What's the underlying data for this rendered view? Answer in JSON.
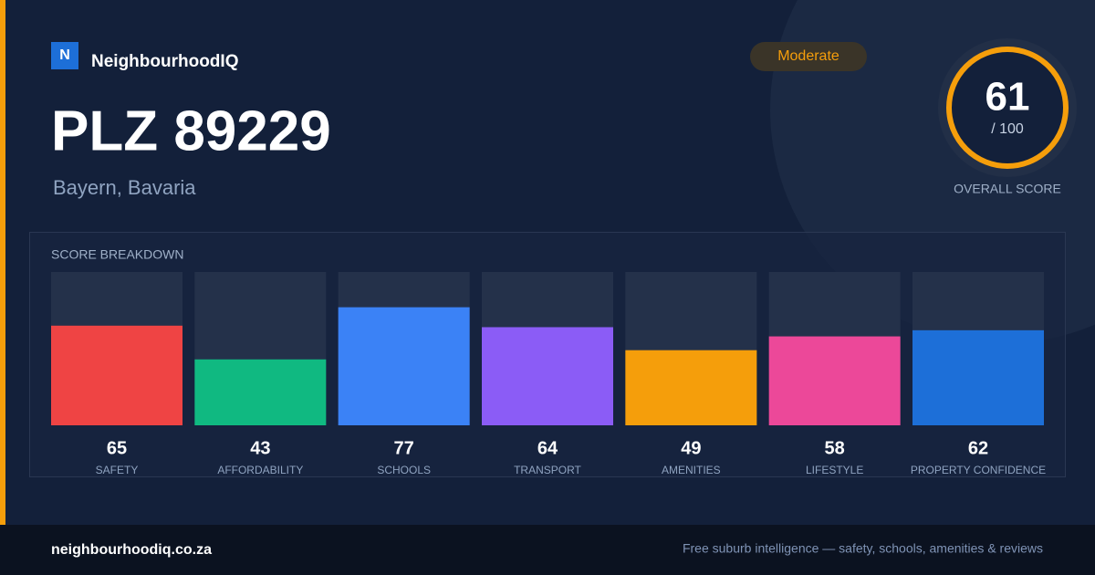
{
  "brand": {
    "logo_letter": "N",
    "name": "NeighbourhoodIQ"
  },
  "header": {
    "title": "PLZ 89229",
    "subtitle": "Bayern, Bavaria",
    "badge": "Moderate"
  },
  "score": {
    "value": 61,
    "max_label": "/ 100",
    "caption": "OVERALL SCORE"
  },
  "chart_data": {
    "type": "bar",
    "title": "SCORE BREAKDOWN",
    "categories": [
      "SAFETY",
      "AFFORDABILITY",
      "SCHOOLS",
      "TRANSPORT",
      "AMENITIES",
      "LIFESTYLE",
      "PROPERTY CONFIDENCE"
    ],
    "values": [
      65,
      43,
      77,
      64,
      49,
      58,
      62
    ],
    "colors": [
      "#ef4444",
      "#10b981",
      "#3b82f6",
      "#8b5cf6",
      "#f59e0b",
      "#ec4899",
      "#1d6fd8"
    ],
    "ylim": [
      0,
      100
    ]
  },
  "footer": {
    "url": "neighbourhoodiq.co.za",
    "tagline": "Free suburb intelligence — safety, schools, amenities & reviews"
  }
}
